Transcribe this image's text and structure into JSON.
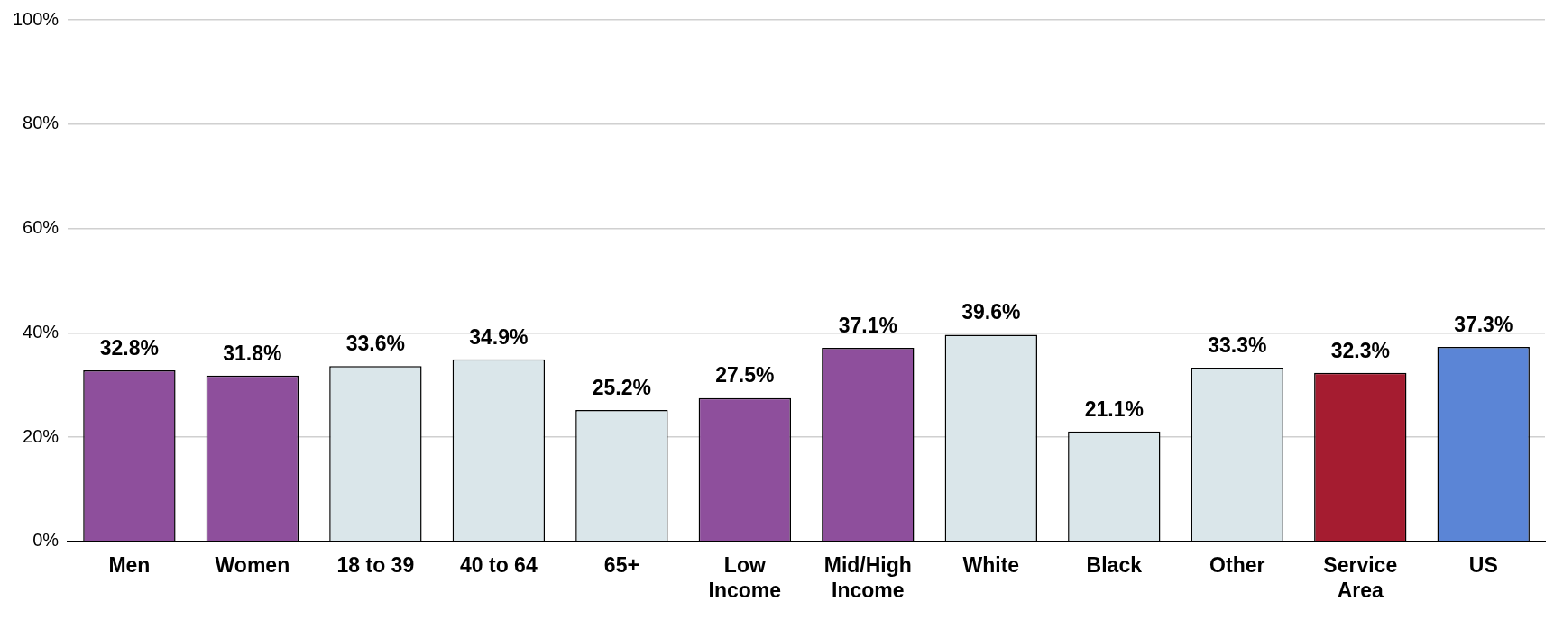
{
  "chart_data": {
    "type": "bar",
    "categories": [
      "Men",
      "Women",
      "18 to 39",
      "40 to 64",
      "65+",
      "Low Income",
      "Mid/High Income",
      "White",
      "Black",
      "Other",
      "Service Area",
      "US"
    ],
    "values": [
      32.8,
      31.8,
      33.6,
      34.9,
      25.2,
      27.5,
      37.1,
      39.6,
      21.1,
      33.3,
      32.3,
      37.3
    ],
    "colors": [
      "#8e4f9c",
      "#8e4f9c",
      "#dae6ea",
      "#dae6ea",
      "#dae6ea",
      "#8e4f9c",
      "#8e4f9c",
      "#dae6ea",
      "#dae6ea",
      "#dae6ea",
      "#a51c30",
      "#5b85d6"
    ],
    "value_labels": [
      "32.8%",
      "31.8%",
      "33.6%",
      "34.9%",
      "25.2%",
      "27.5%",
      "37.1%",
      "39.6%",
      "21.1%",
      "33.3%",
      "32.3%",
      "37.3%"
    ],
    "ylim": [
      0,
      100
    ],
    "yticks": [
      {
        "value": 0,
        "label": "0%"
      },
      {
        "value": 20,
        "label": "20%"
      },
      {
        "value": 40,
        "label": "40%"
      },
      {
        "value": 60,
        "label": "60%"
      },
      {
        "value": 80,
        "label": "80%"
      },
      {
        "value": 100,
        "label": "100%"
      }
    ],
    "grid": "y",
    "legend": false
  }
}
